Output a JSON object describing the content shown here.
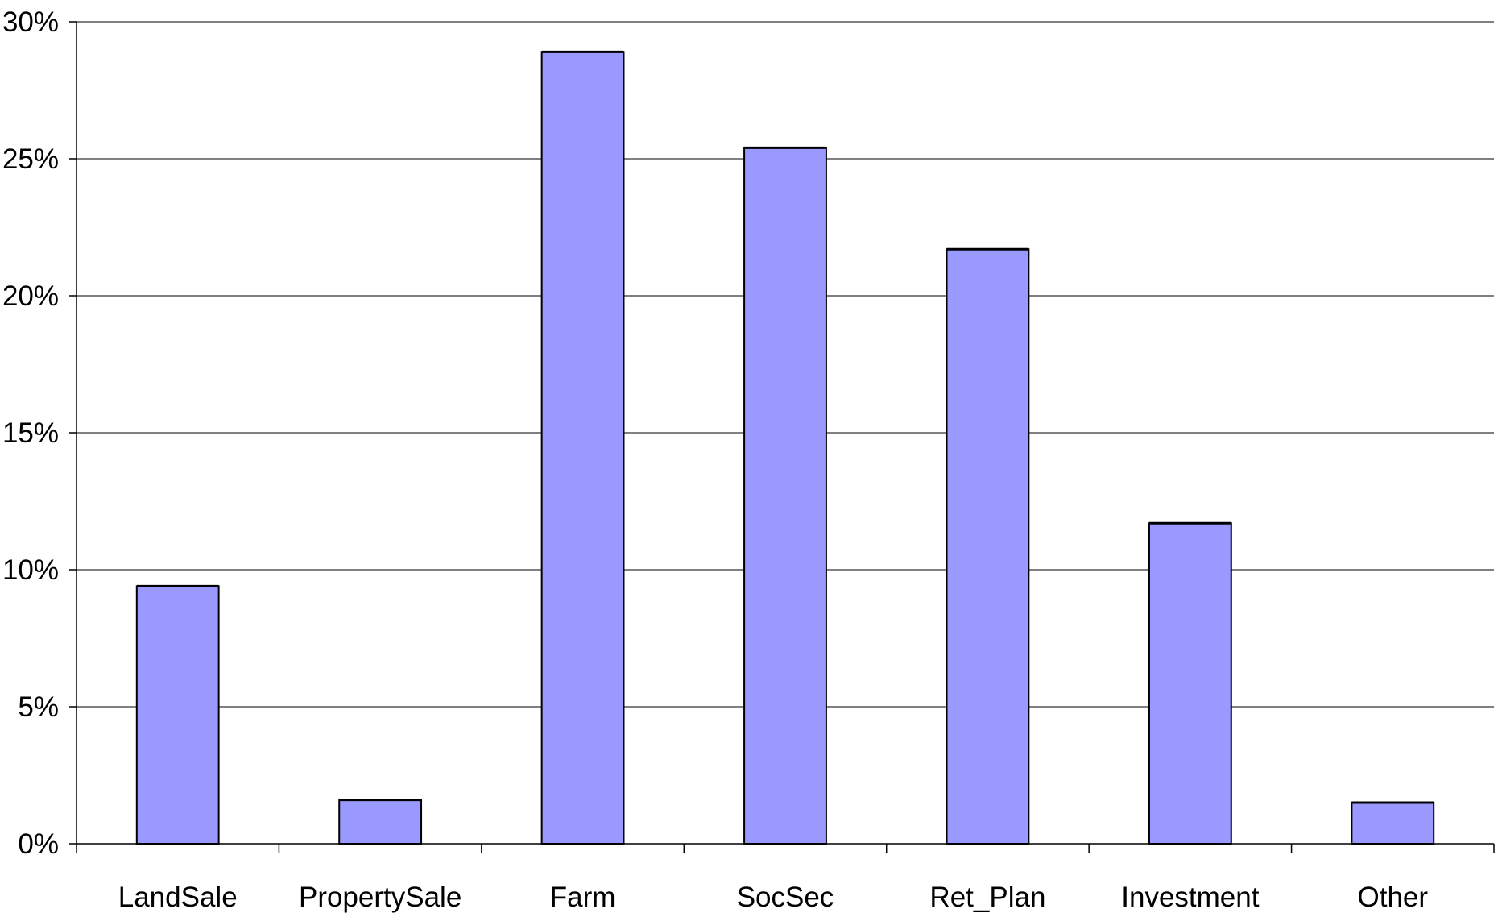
{
  "chart_data": {
    "type": "bar",
    "title": "",
    "xlabel": "",
    "ylabel": "",
    "categories": [
      "LandSale",
      "PropertySale",
      "Farm",
      "SocSec",
      "Ret_Plan",
      "Investment",
      "Other"
    ],
    "values": [
      9.4,
      1.6,
      28.9,
      25.4,
      21.7,
      11.7,
      1.5
    ],
    "ylim": [
      0,
      30
    ],
    "yticks": [
      0,
      5,
      10,
      15,
      20,
      25,
      30
    ],
    "ytick_labels": [
      "0%",
      "5%",
      "10%",
      "15%",
      "20%",
      "25%",
      "30%"
    ],
    "grid": true,
    "legend": "none",
    "colors": {
      "bar_fill": "#9999ff",
      "bar_stroke": "#000000",
      "grid": "#000000",
      "background": "#ffffff"
    }
  }
}
